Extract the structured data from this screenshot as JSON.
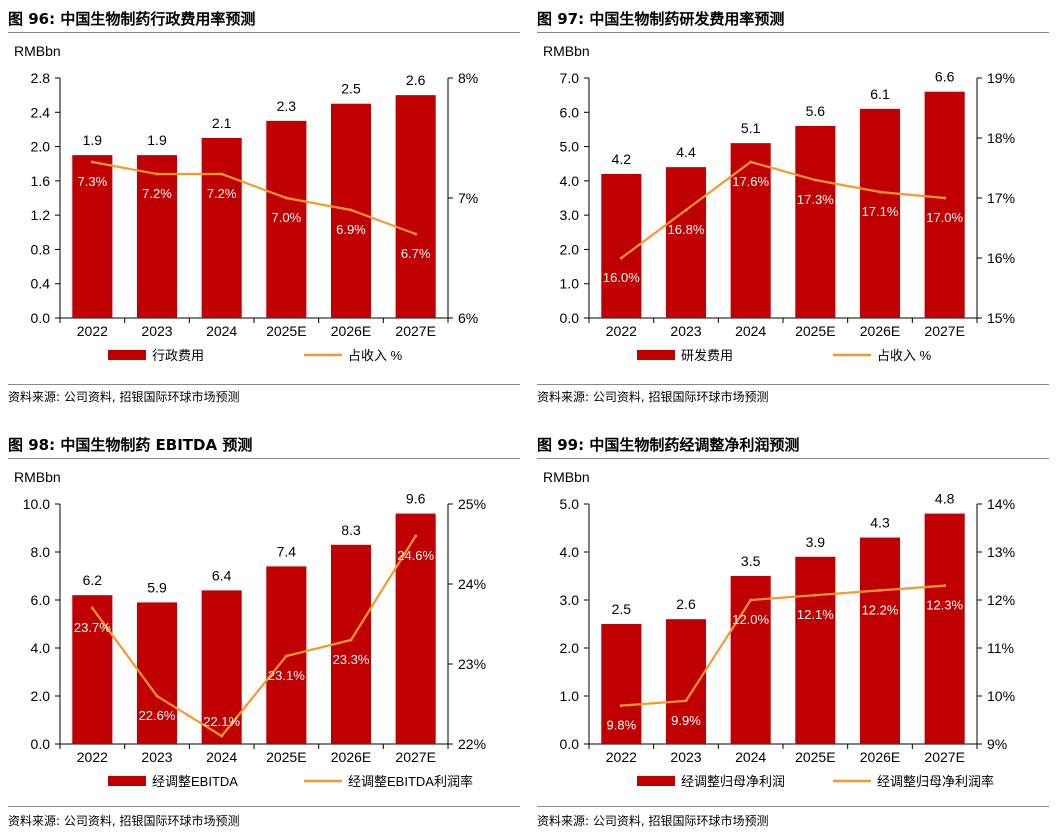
{
  "colors": {
    "bar": "#C00000",
    "line": "#F39A2B",
    "grid": "#000000"
  },
  "charts": [
    {
      "title": "图 96: 中国生物制药行政费用率预测",
      "source": "资料来源: 公司资料, 招银国际环球市场预测",
      "chart_data": {
        "type": "bar",
        "categories": [
          "2022",
          "2023",
          "2024",
          "2025E",
          "2026E",
          "2027E"
        ],
        "series": [
          {
            "name": "行政费用",
            "type": "bar",
            "axis": "left",
            "values": [
              1.9,
              1.9,
              2.1,
              2.3,
              2.5,
              2.6
            ],
            "labels": [
              "1.9",
              "1.9",
              "2.1",
              "2.3",
              "2.5",
              "2.6"
            ]
          },
          {
            "name": "占收入 %",
            "type": "line",
            "axis": "right",
            "values": [
              7.3,
              7.2,
              7.2,
              7.0,
              6.9,
              6.7
            ],
            "labels": [
              "7.3%",
              "7.2%",
              "7.2%",
              "7.0%",
              "6.9%",
              "6.7%"
            ]
          }
        ],
        "ylabel": "RMBbn",
        "ylim": [
          0,
          2.8
        ],
        "yticks": [
          "0.0",
          "0.4",
          "0.8",
          "1.2",
          "1.6",
          "2.0",
          "2.4",
          "2.8"
        ],
        "y2lim": [
          6,
          8
        ],
        "y2ticks": [
          "6%",
          "7%",
          "8%"
        ],
        "legend": [
          "行政费用",
          "占收入 %"
        ]
      }
    },
    {
      "title": "图 97: 中国生物制药研发费用率预测",
      "source": "资料来源: 公司资料, 招银国际环球市场预测",
      "chart_data": {
        "type": "bar",
        "categories": [
          "2022",
          "2023",
          "2024",
          "2025E",
          "2026E",
          "2027E"
        ],
        "series": [
          {
            "name": "研发费用",
            "type": "bar",
            "axis": "left",
            "values": [
              4.2,
              4.4,
              5.1,
              5.6,
              6.1,
              6.6
            ],
            "labels": [
              "4.2",
              "4.4",
              "5.1",
              "5.6",
              "6.1",
              "6.6"
            ]
          },
          {
            "name": "占收入 %",
            "type": "line",
            "axis": "right",
            "values": [
              16.0,
              16.8,
              17.6,
              17.3,
              17.1,
              17.0
            ],
            "labels": [
              "16.0%",
              "16.8%",
              "17.6%",
              "17.3%",
              "17.1%",
              "17.0%"
            ]
          }
        ],
        "ylabel": "RMBbn",
        "ylim": [
          0,
          7
        ],
        "yticks": [
          "0.0",
          "1.0",
          "2.0",
          "3.0",
          "4.0",
          "5.0",
          "6.0",
          "7.0"
        ],
        "y2lim": [
          15,
          19
        ],
        "y2ticks": [
          "15%",
          "16%",
          "17%",
          "18%",
          "19%"
        ],
        "legend": [
          "研发费用",
          "占收入 %"
        ]
      }
    },
    {
      "title": "图 98: 中国生物制药 EBITDA 预测",
      "source": "资料来源: 公司资料, 招银国际环球市场预测",
      "chart_data": {
        "type": "bar",
        "categories": [
          "2022",
          "2023",
          "2024",
          "2025E",
          "2026E",
          "2027E"
        ],
        "series": [
          {
            "name": "经调整EBITDA",
            "type": "bar",
            "axis": "left",
            "values": [
              6.2,
              5.9,
              6.4,
              7.4,
              8.3,
              9.6
            ],
            "labels": [
              "6.2",
              "5.9",
              "6.4",
              "7.4",
              "8.3",
              "9.6"
            ]
          },
          {
            "name": "经调整EBITDA利润率",
            "type": "line",
            "axis": "right",
            "values": [
              23.7,
              22.6,
              22.1,
              23.1,
              23.3,
              24.6
            ],
            "labels": [
              "23.7%",
              "22.6%",
              "22.1%",
              "23.1%",
              "23.3%",
              "24.6%"
            ]
          }
        ],
        "ylabel": "RMBbn",
        "ylim": [
          0,
          10
        ],
        "yticks": [
          "0.0",
          "2.0",
          "4.0",
          "6.0",
          "8.0",
          "10.0"
        ],
        "y2lim": [
          22,
          25
        ],
        "y2ticks": [
          "22%",
          "23%",
          "24%",
          "25%"
        ],
        "legend": [
          "经调整EBITDA",
          "经调整EBITDA利润率"
        ]
      }
    },
    {
      "title": "图 99: 中国生物制药经调整净利润预测",
      "source": "资料来源: 公司资料, 招银国际环球市场预测",
      "chart_data": {
        "type": "bar",
        "categories": [
          "2022",
          "2023",
          "2024",
          "2025E",
          "2026E",
          "2027E"
        ],
        "series": [
          {
            "name": "经调整归母净利润",
            "type": "bar",
            "axis": "left",
            "values": [
              2.5,
              2.6,
              3.5,
              3.9,
              4.3,
              4.8
            ],
            "labels": [
              "2.5",
              "2.6",
              "3.5",
              "3.9",
              "4.3",
              "4.8"
            ]
          },
          {
            "name": "经调整归母净利润率",
            "type": "line",
            "axis": "right",
            "values": [
              9.8,
              9.9,
              12.0,
              12.1,
              12.2,
              12.3
            ],
            "labels": [
              "9.8%",
              "9.9%",
              "12.0%",
              "12.1%",
              "12.2%",
              "12.3%"
            ]
          }
        ],
        "ylabel": "RMBbn",
        "ylim": [
          0,
          5
        ],
        "yticks": [
          "0.0",
          "1.0",
          "2.0",
          "3.0",
          "4.0",
          "5.0"
        ],
        "y2lim": [
          9,
          14
        ],
        "y2ticks": [
          "9%",
          "10%",
          "11%",
          "12%",
          "13%",
          "14%"
        ],
        "legend": [
          "经调整归母净利润",
          "经调整归母净利润率"
        ]
      }
    }
  ]
}
